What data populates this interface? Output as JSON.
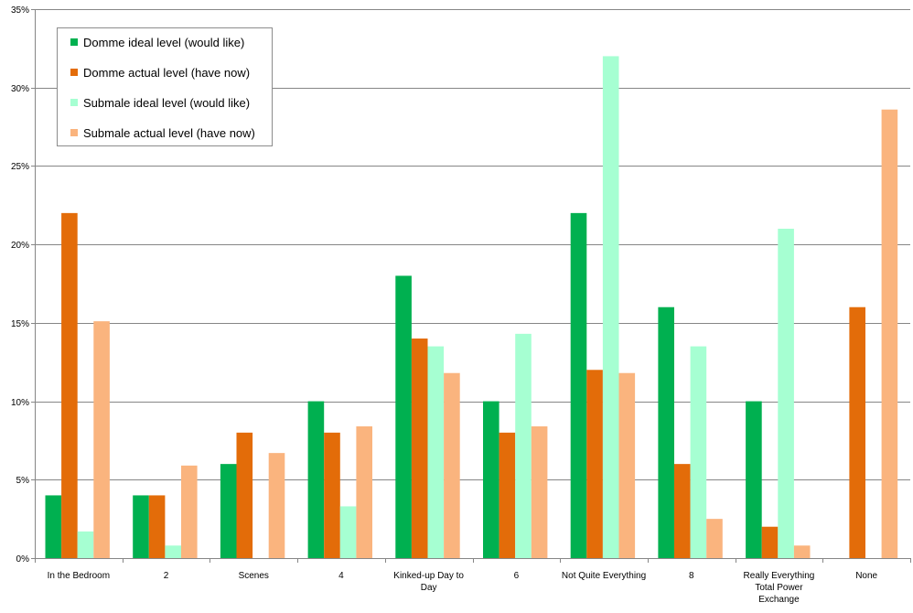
{
  "chart_data": {
    "type": "bar",
    "title": "",
    "xlabel": "",
    "ylabel": "",
    "ylim": [
      0,
      35
    ],
    "yticks": [
      "0%",
      "5%",
      "10%",
      "15%",
      "20%",
      "25%",
      "30%",
      "35%"
    ],
    "grid": true,
    "legend_position": "top-left",
    "categories": [
      [
        "In the Bedroom"
      ],
      [
        "2"
      ],
      [
        "Scenes"
      ],
      [
        "4"
      ],
      [
        "Kinked-up Day to",
        "Day"
      ],
      [
        "6"
      ],
      [
        "Not Quite Everything"
      ],
      [
        "8"
      ],
      [
        "Really Everything",
        "Total Power",
        "Exchange"
      ],
      [
        "None"
      ]
    ],
    "series": [
      {
        "name": "Domme ideal level (would like)",
        "color": "#00b050",
        "values": [
          4,
          4,
          6,
          10,
          18,
          10,
          22,
          16,
          10,
          0
        ]
      },
      {
        "name": "Domme actual level (have now)",
        "color": "#e36c09",
        "values": [
          22,
          4,
          8,
          8,
          14,
          8,
          12,
          6,
          2,
          16
        ]
      },
      {
        "name": "Submale ideal level (would like)",
        "color": "#a6ffd2",
        "values": [
          1.7,
          0.8,
          0,
          3.3,
          13.5,
          14.3,
          32,
          13.5,
          21,
          0
        ]
      },
      {
        "name": "Submale actual level (have now)",
        "color": "#fab47e",
        "values": [
          15.1,
          5.9,
          6.7,
          8.4,
          11.8,
          8.4,
          11.8,
          2.5,
          0.8,
          28.6
        ]
      }
    ]
  }
}
